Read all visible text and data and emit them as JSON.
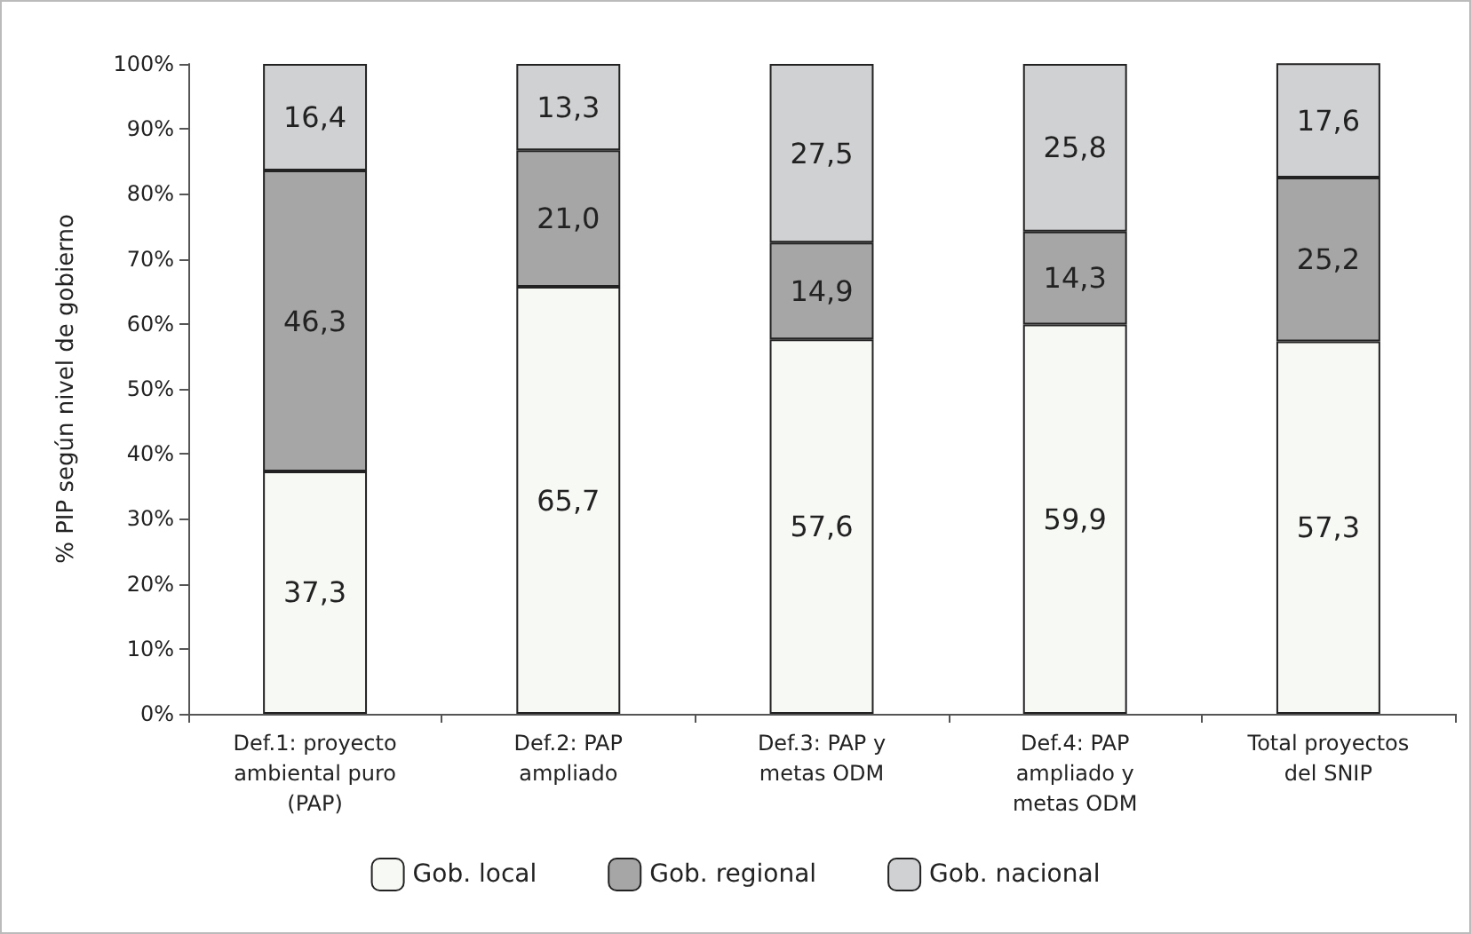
{
  "chart_data": {
    "type": "bar",
    "stacked": true,
    "ylabel": "% PIP según nivel de gobierno",
    "categories": [
      "Def.1: proyecto\nambiental puro\n(PAP)",
      "Def.2: PAP\nampliado",
      "Def.3: PAP y\nmetas ODM",
      "Def.4: PAP\nampliado y\nmetas ODM",
      "Total proyectos\ndel SNIP"
    ],
    "series": [
      {
        "name": "Gob. local",
        "color": "#f7f9f5",
        "values": [
          37.3,
          65.7,
          57.6,
          59.9,
          57.3
        ],
        "value_labels": [
          "37,3",
          "65,7",
          "57,6",
          "59,9",
          "57,3"
        ]
      },
      {
        "name": "Gob. regional",
        "color": "#a6a6a6",
        "values": [
          46.3,
          21.0,
          14.9,
          14.3,
          25.2
        ],
        "value_labels": [
          "46,3",
          "21,0",
          "14,9",
          "14,3",
          "25,2"
        ]
      },
      {
        "name": "Gob. nacional",
        "color": "#d0d1d3",
        "values": [
          16.4,
          13.3,
          27.5,
          25.8,
          17.6
        ],
        "value_labels": [
          "16,4",
          "13,3",
          "27,5",
          "25,8",
          "17,6"
        ]
      }
    ],
    "ylim": [
      0,
      100
    ],
    "yticks": [
      {
        "value": 0,
        "label": "0%"
      },
      {
        "value": 10,
        "label": "10%"
      },
      {
        "value": 20,
        "label": "20%"
      },
      {
        "value": 30,
        "label": "30%"
      },
      {
        "value": 40,
        "label": "40%"
      },
      {
        "value": 50,
        "label": "50%"
      },
      {
        "value": 60,
        "label": "60%"
      },
      {
        "value": 70,
        "label": "70%"
      },
      {
        "value": 80,
        "label": "80%"
      },
      {
        "value": 90,
        "label": "90%"
      },
      {
        "value": 100,
        "label": "100%"
      }
    ],
    "grid": false,
    "legend": "bottom"
  }
}
